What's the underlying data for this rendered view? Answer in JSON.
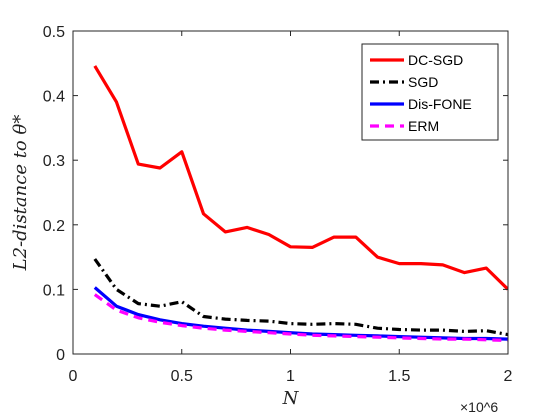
{
  "chart_data": {
    "type": "line",
    "xlabel": "N",
    "ylabel": "L2-distance to θ*",
    "x_multiplier": "×10^6",
    "xlim": [
      0,
      2
    ],
    "ylim": [
      0,
      0.5
    ],
    "xticks": [
      0,
      0.5,
      1,
      1.5,
      2
    ],
    "xtick_labels": [
      "0",
      "0.5",
      "1",
      "1.5",
      "2"
    ],
    "yticks": [
      0,
      0.1,
      0.2,
      0.3,
      0.4,
      0.5
    ],
    "ytick_labels": [
      "0",
      "0.1",
      "0.2",
      "0.3",
      "0.4",
      "0.5"
    ],
    "grid": false,
    "legend_position": "top-right",
    "x": [
      0.1,
      0.2,
      0.3,
      0.4,
      0.5,
      0.6,
      0.7,
      0.8,
      0.9,
      1.0,
      1.1,
      1.2,
      1.3,
      1.4,
      1.5,
      1.6,
      1.7,
      1.8,
      1.9,
      2.0
    ],
    "series": [
      {
        "name": "DC-SGD",
        "color": "#ff0000",
        "dash": "solid",
        "values": [
          0.446,
          0.39,
          0.294,
          0.288,
          0.313,
          0.217,
          0.189,
          0.196,
          0.185,
          0.166,
          0.165,
          0.181,
          0.181,
          0.15,
          0.14,
          0.14,
          0.138,
          0.126,
          0.133,
          0.1
        ]
      },
      {
        "name": "SGD",
        "color": "#000000",
        "dash": "dashdot",
        "values": [
          0.147,
          0.1,
          0.078,
          0.074,
          0.081,
          0.058,
          0.054,
          0.052,
          0.051,
          0.047,
          0.046,
          0.047,
          0.046,
          0.04,
          0.038,
          0.037,
          0.037,
          0.035,
          0.036,
          0.03
        ]
      },
      {
        "name": "Dis-FONE",
        "color": "#0000ff",
        "dash": "solid",
        "values": [
          0.103,
          0.074,
          0.061,
          0.053,
          0.047,
          0.043,
          0.04,
          0.037,
          0.035,
          0.033,
          0.031,
          0.03,
          0.029,
          0.028,
          0.027,
          0.026,
          0.025,
          0.024,
          0.024,
          0.023
        ]
      },
      {
        "name": "ERM",
        "color": "#ff00ff",
        "dash": "dashed",
        "values": [
          0.092,
          0.068,
          0.056,
          0.049,
          0.044,
          0.04,
          0.037,
          0.035,
          0.033,
          0.031,
          0.029,
          0.028,
          0.027,
          0.026,
          0.025,
          0.024,
          0.023,
          0.023,
          0.022,
          0.021
        ]
      }
    ]
  }
}
